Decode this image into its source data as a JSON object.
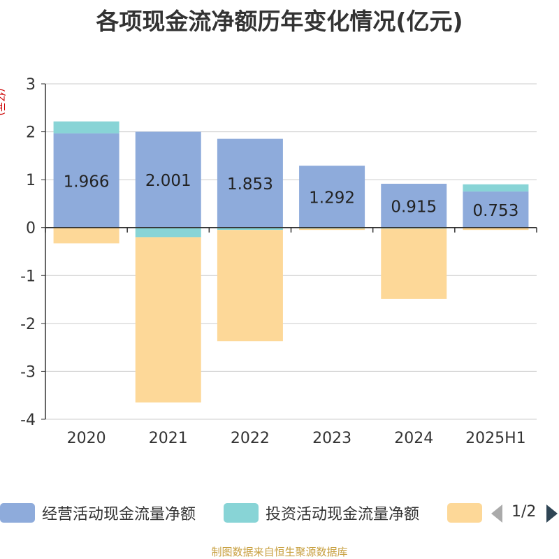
{
  "chart_data": {
    "type": "bar",
    "stacked": true,
    "title": "各项现金流净额历年变化情况(亿元)",
    "ylabel": "(亿元)",
    "categories": [
      "2020",
      "2021",
      "2022",
      "2023",
      "2024",
      "2025H1"
    ],
    "ylim": [
      -4,
      3
    ],
    "yticks": [
      3,
      2,
      1,
      0,
      -1,
      -2,
      -3,
      -4
    ],
    "grid": true,
    "series": [
      {
        "name": "经营活动现金流量净额",
        "color": "#8eabdb",
        "values": [
          1.966,
          2.001,
          1.853,
          1.292,
          0.915,
          0.753
        ],
        "labels": [
          "1.966",
          "2.001",
          "1.853",
          "1.292",
          "0.915",
          "0.753"
        ]
      },
      {
        "name": "投资活动现金流量净额",
        "color": "#88d4d6",
        "values": [
          0.25,
          -0.2,
          -0.05,
          -0.02,
          -0.02,
          0.15
        ]
      },
      {
        "name": "",
        "color": "#fdd898",
        "values": [
          -0.33,
          -3.45,
          -2.32,
          -0.03,
          -1.47,
          -0.05
        ]
      }
    ],
    "legend": {
      "position": "bottom",
      "page": "1/2"
    }
  },
  "source": "制图数据来自恒生聚源数据库"
}
